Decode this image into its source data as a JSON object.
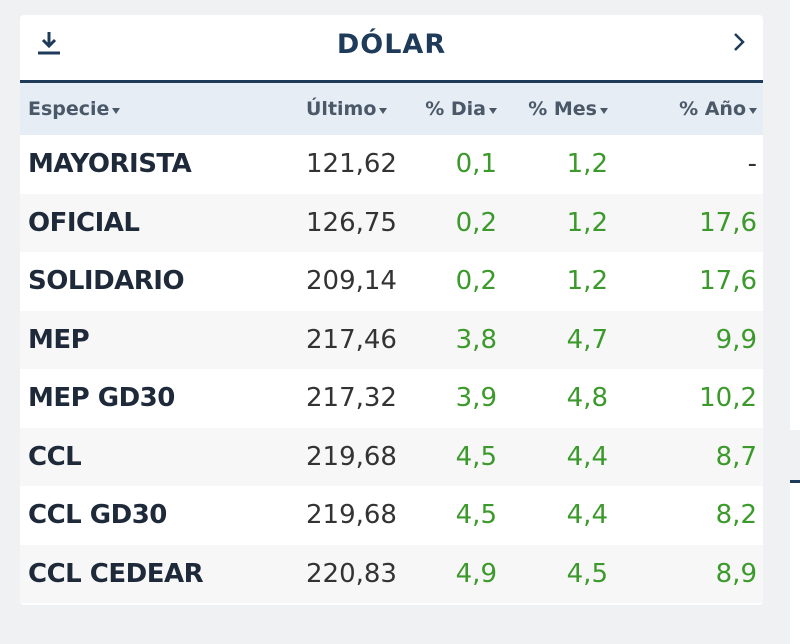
{
  "widget": {
    "title": "DÓLAR",
    "columns": [
      "Especie",
      "Último",
      "% Dia",
      "% Mes",
      "% Año"
    ],
    "rows": [
      [
        "MAYORISTA",
        "121,62",
        "0,1",
        "1,2",
        "-"
      ],
      [
        "OFICIAL",
        "126,75",
        "0,2",
        "1,2",
        "17,6"
      ],
      [
        "SOLIDARIO",
        "209,14",
        "0,2",
        "1,2",
        "17,6"
      ],
      [
        "MEP",
        "217,46",
        "3,8",
        "4,7",
        "9,9"
      ],
      [
        "MEP GD30",
        "217,32",
        "3,9",
        "4,8",
        "10,2"
      ],
      [
        "CCL",
        "219,68",
        "4,5",
        "4,4",
        "8,7"
      ],
      [
        "CCL GD30",
        "219,68",
        "4,5",
        "4,4",
        "8,2"
      ],
      [
        "CCL CEDEAR",
        "220,83",
        "4,9",
        "4,5",
        "8,9"
      ]
    ]
  }
}
